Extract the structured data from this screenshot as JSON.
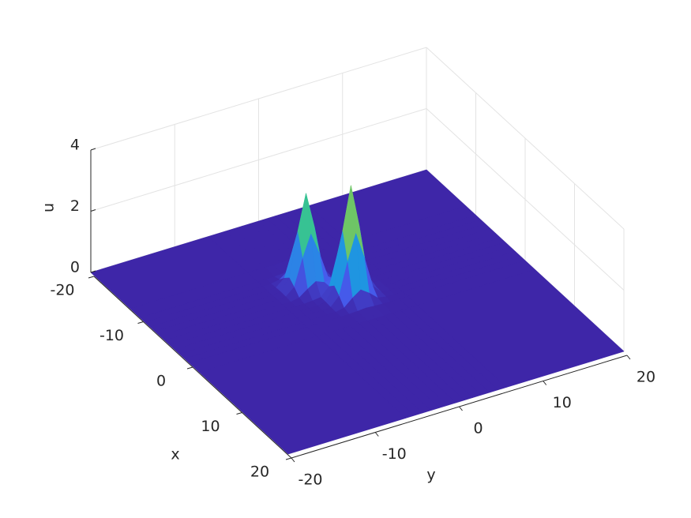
{
  "chart_data": {
    "type": "surface",
    "xlabel": "x",
    "ylabel": "y",
    "zlabel": "u",
    "x": [
      -20,
      -12,
      -10,
      -9,
      -8,
      -7,
      -6,
      -5,
      -4,
      -3,
      -2,
      -1,
      0,
      2,
      20
    ],
    "y": [
      -20,
      -6,
      -5,
      -4,
      -3,
      -2,
      -1,
      0,
      1,
      2,
      3,
      4,
      5,
      6,
      20
    ],
    "z": [
      [
        0,
        0,
        0,
        0,
        0,
        0,
        0,
        0,
        0,
        0,
        0,
        0,
        0,
        0,
        0
      ],
      [
        0,
        0,
        0,
        0,
        0,
        0,
        0,
        0,
        0,
        0,
        0,
        0,
        0,
        0,
        0
      ],
      [
        0,
        0,
        0,
        0,
        0.02,
        0.03,
        0.02,
        0,
        0,
        0,
        0,
        0,
        0,
        0,
        0
      ],
      [
        0,
        0,
        0,
        0.05,
        0.25,
        0.41,
        0.25,
        0.05,
        0,
        0,
        0,
        0,
        0,
        0,
        0
      ],
      [
        0,
        0,
        0.02,
        0.25,
        1.1,
        1.82,
        1.1,
        0.25,
        0.02,
        0,
        0,
        0,
        0,
        0,
        0
      ],
      [
        0,
        0,
        0.03,
        0.41,
        1.82,
        3.0,
        1.82,
        0.41,
        0.03,
        0,
        0,
        0,
        0,
        0,
        0
      ],
      [
        0,
        0,
        0.02,
        0.25,
        1.1,
        1.82,
        1.11,
        0.27,
        0.06,
        0.02,
        0.01,
        0,
        0,
        0,
        0
      ],
      [
        0,
        0,
        0,
        0.05,
        0.25,
        0.42,
        0.31,
        0.35,
        0.49,
        0.3,
        0.06,
        0.01,
        0,
        0,
        0
      ],
      [
        0,
        0,
        0,
        0,
        0.02,
        0.05,
        0.32,
        1.32,
        2.18,
        1.32,
        0.3,
        0.02,
        0,
        0,
        0
      ],
      [
        0,
        0,
        0,
        0,
        0,
        0.04,
        0.49,
        2.18,
        3.6,
        2.18,
        0.49,
        0.04,
        0,
        0,
        0
      ],
      [
        0,
        0,
        0,
        0,
        0,
        0.02,
        0.3,
        1.32,
        2.18,
        1.32,
        0.3,
        0.02,
        0,
        0,
        0
      ],
      [
        0,
        0,
        0,
        0,
        0,
        0.01,
        0.06,
        0.3,
        0.49,
        0.3,
        0.06,
        0.01,
        0,
        0,
        0
      ],
      [
        0,
        0,
        0,
        0,
        0,
        0,
        0.01,
        0.02,
        0.04,
        0.02,
        0.01,
        0,
        0,
        0,
        0
      ],
      [
        0,
        0,
        0,
        0,
        0,
        0,
        0,
        0,
        0,
        0,
        0,
        0,
        0,
        0,
        0
      ],
      [
        0,
        0,
        0,
        0,
        0,
        0,
        0,
        0,
        0,
        0,
        0,
        0,
        0,
        0,
        0
      ]
    ],
    "xlim": [
      -20,
      20
    ],
    "ylim": [
      -20,
      20
    ],
    "zlim": [
      0,
      4
    ],
    "xticks": [
      -20,
      -10,
      0,
      10,
      20
    ],
    "yticks": [
      -20,
      -10,
      0,
      10,
      20
    ],
    "zticks": [
      0,
      2,
      4
    ],
    "grid": true,
    "colormap": "parula"
  }
}
